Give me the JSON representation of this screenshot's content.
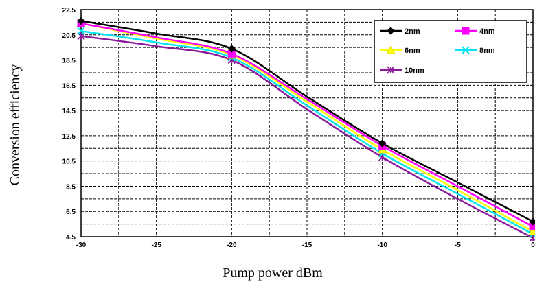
{
  "chart_data": {
    "type": "line",
    "title": "",
    "xlabel": "Pump power dBm",
    "ylabel": "Conversion efficiency",
    "xlim": [
      -30,
      0
    ],
    "ylim": [
      4.5,
      22.5
    ],
    "x_ticks": [
      -30,
      -25,
      -20,
      -15,
      -10,
      -5,
      0
    ],
    "x_tick_labels": [
      "-30",
      "-25",
      "-20",
      "-15",
      "-10",
      "-5",
      "0"
    ],
    "y_ticks": [
      4.5,
      6.5,
      8.5,
      10.5,
      12.5,
      14.5,
      16.5,
      18.5,
      20.5,
      22.5
    ],
    "y_tick_labels": [
      "4.5",
      "6.5",
      "8.5",
      "10.5",
      "12.5",
      "14.5",
      "16.5",
      "18.5",
      "20.5",
      "22.5"
    ],
    "grid": true,
    "legend_position": "top-right",
    "series": [
      {
        "name": "2nm",
        "color": "#000000",
        "marker": "diamond",
        "x": [
          -30,
          -25,
          -20,
          -15,
          -10,
          -5,
          0
        ],
        "values": [
          21.6,
          20.6,
          19.4,
          15.6,
          11.9,
          8.8,
          5.7
        ]
      },
      {
        "name": "4nm",
        "color": "#ff00ff",
        "marker": "square",
        "x": [
          -30,
          -25,
          -20,
          -15,
          -10,
          -5,
          0
        ],
        "values": [
          21.4,
          20.3,
          19.0,
          15.4,
          11.7,
          8.5,
          5.3
        ]
      },
      {
        "name": "6nm",
        "color": "#ffff00",
        "marker": "triangle",
        "x": [
          -30,
          -25,
          -20,
          -15,
          -10,
          -5,
          0
        ],
        "values": [
          21.4,
          20.2,
          18.9,
          15.2,
          11.4,
          8.2,
          4.9
        ]
      },
      {
        "name": "8nm",
        "color": "#00e5ee",
        "marker": "x",
        "x": [
          -30,
          -25,
          -20,
          -15,
          -10,
          -5,
          0
        ],
        "values": [
          20.8,
          19.9,
          18.7,
          14.9,
          11.1,
          7.9,
          4.7
        ]
      },
      {
        "name": "10nm",
        "color": "#8b1a9b",
        "marker": "star",
        "x": [
          -30,
          -25,
          -20,
          -15,
          -10,
          -5,
          0
        ],
        "values": [
          20.4,
          19.6,
          18.5,
          14.6,
          10.8,
          7.5,
          4.4
        ]
      }
    ]
  }
}
